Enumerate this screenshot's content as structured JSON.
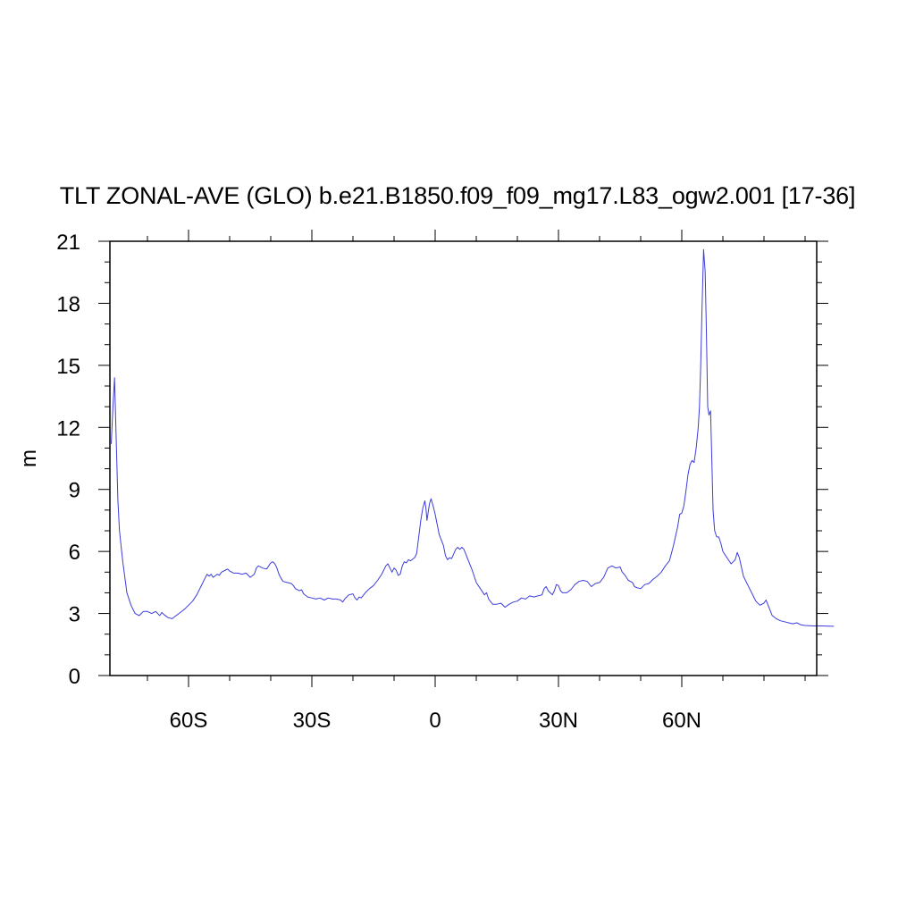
{
  "chart_data": {
    "type": "line",
    "title": "TLT ZONAL-AVE (GLO) b.e21.B1850.f09_f09_mg17.L83_ogw2.001 [17-36]",
    "xlabel": "",
    "ylabel": "m",
    "xlim": [
      -80,
      90
    ],
    "ylim": [
      0,
      21
    ],
    "xticks": [
      {
        "value": -60,
        "label": "60S"
      },
      {
        "value": -30,
        "label": "30S"
      },
      {
        "value": 0,
        "label": "0"
      },
      {
        "value": 30,
        "label": "30N"
      },
      {
        "value": 60,
        "label": "60N"
      }
    ],
    "xminor_step": 10,
    "yticks": [
      0,
      3,
      6,
      9,
      12,
      15,
      18,
      21
    ],
    "yminor_step": 1,
    "grid": false,
    "series": [
      {
        "color": "#3c3cdc",
        "points": [
          [
            -78.8,
            11.2
          ],
          [
            -78.4,
            13.0
          ],
          [
            -78.0,
            14.4
          ],
          [
            -77.6,
            11.5
          ],
          [
            -77.2,
            8.5
          ],
          [
            -76.8,
            7.0
          ],
          [
            -76.0,
            5.5
          ],
          [
            -75.0,
            4.0
          ],
          [
            -74.0,
            3.4
          ],
          [
            -73.0,
            3.0
          ],
          [
            -72.0,
            2.9
          ],
          [
            -71.0,
            3.1
          ],
          [
            -70.0,
            3.1
          ],
          [
            -69.0,
            3.0
          ],
          [
            -68.0,
            3.1
          ],
          [
            -67.0,
            2.9
          ],
          [
            -66.5,
            3.05
          ],
          [
            -66.0,
            2.95
          ],
          [
            -65.0,
            2.8
          ],
          [
            -64.0,
            2.75
          ],
          [
            -63.0,
            2.9
          ],
          [
            -62.0,
            3.05
          ],
          [
            -61.0,
            3.2
          ],
          [
            -60.0,
            3.4
          ],
          [
            -59.0,
            3.6
          ],
          [
            -58.0,
            3.9
          ],
          [
            -57.0,
            4.3
          ],
          [
            -56.0,
            4.7
          ],
          [
            -55.5,
            4.9
          ],
          [
            -55.0,
            4.8
          ],
          [
            -54.5,
            4.9
          ],
          [
            -54.0,
            4.75
          ],
          [
            -53.0,
            4.9
          ],
          [
            -52.5,
            4.85
          ],
          [
            -52.0,
            5.0
          ],
          [
            -51.0,
            5.1
          ],
          [
            -50.5,
            5.15
          ],
          [
            -50.0,
            5.05
          ],
          [
            -49.0,
            4.95
          ],
          [
            -48.0,
            4.95
          ],
          [
            -47.0,
            4.9
          ],
          [
            -46.0,
            4.95
          ],
          [
            -45.0,
            4.75
          ],
          [
            -44.0,
            4.9
          ],
          [
            -43.5,
            5.2
          ],
          [
            -43.0,
            5.3
          ],
          [
            -42.0,
            5.2
          ],
          [
            -41.0,
            5.15
          ],
          [
            -40.5,
            5.3
          ],
          [
            -40.0,
            5.45
          ],
          [
            -39.5,
            5.5
          ],
          [
            -39.0,
            5.4
          ],
          [
            -38.5,
            5.2
          ],
          [
            -38.0,
            4.9
          ],
          [
            -37.5,
            4.7
          ],
          [
            -37.0,
            4.55
          ],
          [
            -36.0,
            4.5
          ],
          [
            -35.0,
            4.45
          ],
          [
            -34.5,
            4.35
          ],
          [
            -34.0,
            4.2
          ],
          [
            -33.0,
            4.1
          ],
          [
            -32.5,
            4.15
          ],
          [
            -32.0,
            3.95
          ],
          [
            -31.0,
            3.8
          ],
          [
            -30.0,
            3.75
          ],
          [
            -29.0,
            3.7
          ],
          [
            -28.0,
            3.75
          ],
          [
            -27.0,
            3.65
          ],
          [
            -26.0,
            3.75
          ],
          [
            -25.0,
            3.7
          ],
          [
            -24.0,
            3.7
          ],
          [
            -23.0,
            3.65
          ],
          [
            -22.5,
            3.55
          ],
          [
            -22.0,
            3.7
          ],
          [
            -21.0,
            3.9
          ],
          [
            -20.0,
            3.95
          ],
          [
            -19.5,
            3.75
          ],
          [
            -19.0,
            3.65
          ],
          [
            -18.5,
            3.8
          ],
          [
            -18.0,
            3.75
          ],
          [
            -17.0,
            4.0
          ],
          [
            -16.0,
            4.2
          ],
          [
            -15.0,
            4.35
          ],
          [
            -14.0,
            4.6
          ],
          [
            -13.0,
            4.9
          ],
          [
            -12.0,
            5.3
          ],
          [
            -11.5,
            5.4
          ],
          [
            -11.0,
            5.2
          ],
          [
            -10.5,
            5.0
          ],
          [
            -10.0,
            5.2
          ],
          [
            -9.5,
            5.1
          ],
          [
            -9.0,
            4.85
          ],
          [
            -8.5,
            4.9
          ],
          [
            -8.0,
            5.3
          ],
          [
            -7.5,
            5.5
          ],
          [
            -7.0,
            5.45
          ],
          [
            -6.5,
            5.6
          ],
          [
            -6.0,
            5.55
          ],
          [
            -5.0,
            5.7
          ],
          [
            -4.5,
            5.9
          ],
          [
            -4.0,
            6.7
          ],
          [
            -3.5,
            7.5
          ],
          [
            -3.0,
            8.1
          ],
          [
            -2.5,
            8.45
          ],
          [
            -2.2,
            8.0
          ],
          [
            -2.0,
            7.5
          ],
          [
            -1.7,
            7.9
          ],
          [
            -1.4,
            8.3
          ],
          [
            -1.0,
            8.55
          ],
          [
            -0.5,
            8.2
          ],
          [
            0.0,
            7.8
          ],
          [
            0.5,
            7.3
          ],
          [
            1.0,
            6.8
          ],
          [
            2.0,
            6.3
          ],
          [
            2.5,
            5.8
          ],
          [
            3.0,
            5.6
          ],
          [
            3.5,
            5.7
          ],
          [
            4.0,
            5.65
          ],
          [
            5.0,
            6.1
          ],
          [
            5.5,
            6.2
          ],
          [
            6.0,
            6.1
          ],
          [
            6.5,
            6.2
          ],
          [
            7.0,
            6.1
          ],
          [
            8.0,
            5.6
          ],
          [
            9.0,
            5.1
          ],
          [
            10.0,
            4.5
          ],
          [
            11.0,
            4.2
          ],
          [
            12.0,
            3.9
          ],
          [
            12.5,
            4.0
          ],
          [
            13.0,
            3.7
          ],
          [
            14.0,
            3.45
          ],
          [
            15.0,
            3.45
          ],
          [
            16.0,
            3.5
          ],
          [
            17.0,
            3.3
          ],
          [
            18.0,
            3.45
          ],
          [
            19.0,
            3.55
          ],
          [
            20.0,
            3.6
          ],
          [
            21.0,
            3.75
          ],
          [
            22.0,
            3.7
          ],
          [
            23.0,
            3.85
          ],
          [
            24.0,
            3.8
          ],
          [
            25.0,
            3.85
          ],
          [
            26.0,
            3.9
          ],
          [
            26.5,
            4.2
          ],
          [
            27.0,
            4.3
          ],
          [
            27.5,
            4.1
          ],
          [
            28.0,
            4.0
          ],
          [
            28.5,
            3.9
          ],
          [
            29.0,
            4.1
          ],
          [
            29.5,
            4.4
          ],
          [
            30.0,
            4.35
          ],
          [
            30.5,
            4.1
          ],
          [
            31.0,
            4.0
          ],
          [
            32.0,
            4.0
          ],
          [
            33.0,
            4.15
          ],
          [
            34.0,
            4.4
          ],
          [
            35.0,
            4.55
          ],
          [
            36.0,
            4.6
          ],
          [
            37.0,
            4.55
          ],
          [
            38.0,
            4.3
          ],
          [
            39.0,
            4.45
          ],
          [
            40.0,
            4.5
          ],
          [
            41.0,
            4.75
          ],
          [
            42.0,
            5.2
          ],
          [
            43.0,
            5.3
          ],
          [
            44.0,
            5.2
          ],
          [
            45.0,
            5.25
          ],
          [
            45.5,
            5.0
          ],
          [
            46.0,
            4.9
          ],
          [
            47.0,
            4.6
          ],
          [
            48.0,
            4.5
          ],
          [
            48.5,
            4.3
          ],
          [
            49.0,
            4.25
          ],
          [
            50.0,
            4.2
          ],
          [
            51.0,
            4.4
          ],
          [
            52.0,
            4.45
          ],
          [
            53.0,
            4.65
          ],
          [
            54.0,
            4.8
          ],
          [
            55.0,
            5.0
          ],
          [
            56.0,
            5.3
          ],
          [
            57.0,
            5.55
          ],
          [
            58.0,
            6.3
          ],
          [
            59.0,
            7.2
          ],
          [
            59.5,
            7.8
          ],
          [
            60.0,
            7.85
          ],
          [
            60.5,
            8.2
          ],
          [
            61.0,
            8.9
          ],
          [
            61.5,
            9.7
          ],
          [
            62.0,
            10.2
          ],
          [
            62.5,
            10.4
          ],
          [
            63.0,
            10.3
          ],
          [
            63.5,
            11.0
          ],
          [
            64.0,
            12.0
          ],
          [
            64.3,
            13.0
          ],
          [
            64.6,
            15.0
          ],
          [
            64.9,
            17.5
          ],
          [
            65.3,
            20.6
          ],
          [
            65.7,
            19.5
          ],
          [
            66.0,
            16.5
          ],
          [
            66.3,
            13.0
          ],
          [
            66.6,
            12.6
          ],
          [
            67.0,
            12.8
          ],
          [
            67.3,
            10.5
          ],
          [
            67.6,
            8.0
          ],
          [
            68.0,
            7.0
          ],
          [
            68.5,
            6.7
          ],
          [
            69.0,
            6.7
          ],
          [
            69.5,
            6.4
          ],
          [
            70.0,
            6.0
          ],
          [
            71.0,
            5.7
          ],
          [
            72.0,
            5.4
          ],
          [
            72.5,
            5.5
          ],
          [
            73.0,
            5.6
          ],
          [
            73.5,
            5.95
          ],
          [
            74.0,
            5.7
          ],
          [
            75.0,
            4.8
          ],
          [
            76.0,
            4.4
          ],
          [
            76.5,
            4.2
          ],
          [
            77.0,
            4.0
          ],
          [
            78.0,
            3.6
          ],
          [
            79.0,
            3.4
          ],
          [
            80.0,
            3.5
          ],
          [
            80.5,
            3.65
          ],
          [
            81.0,
            3.4
          ],
          [
            82.0,
            2.9
          ],
          [
            83.0,
            2.75
          ],
          [
            84.0,
            2.65
          ],
          [
            85.0,
            2.6
          ],
          [
            86.0,
            2.55
          ],
          [
            87.0,
            2.5
          ],
          [
            88.0,
            2.55
          ],
          [
            89.0,
            2.45
          ],
          [
            90.0,
            2.42
          ],
          [
            92.0,
            2.4
          ],
          [
            94.0,
            2.4
          ],
          [
            97.0,
            2.38
          ]
        ]
      }
    ]
  }
}
